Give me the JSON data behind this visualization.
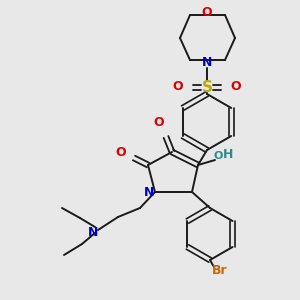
{
  "background_color": "#e8e8e8",
  "fig_size": [
    3.0,
    3.0
  ],
  "dpi": 100,
  "colors": {
    "bond": "#1a1a1a",
    "O": "#dd0000",
    "N": "#0000cc",
    "S": "#bbaa00",
    "Br": "#cc6600",
    "OH": "#2e8b8b"
  }
}
